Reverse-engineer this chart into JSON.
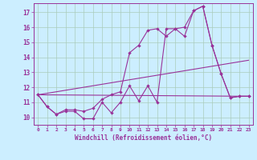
{
  "xlabel": "Windchill (Refroidissement éolien,°C)",
  "bg_color": "#cceeff",
  "grid_color": "#aaccbb",
  "line_color": "#993399",
  "xlim": [
    -0.5,
    23.5
  ],
  "ylim": [
    9.5,
    17.6
  ],
  "xticks": [
    0,
    1,
    2,
    3,
    4,
    5,
    6,
    7,
    8,
    9,
    10,
    11,
    12,
    13,
    14,
    15,
    16,
    17,
    18,
    19,
    20,
    21,
    22,
    23
  ],
  "yticks": [
    10,
    11,
    12,
    13,
    14,
    15,
    16,
    17
  ],
  "line1_x": [
    0,
    1,
    2,
    3,
    4,
    5,
    6,
    7,
    8,
    9,
    10,
    11,
    12,
    13,
    14,
    15,
    16,
    17,
    18,
    19,
    20,
    21,
    22,
    23
  ],
  "line1_y": [
    11.5,
    10.7,
    10.2,
    10.4,
    10.4,
    9.9,
    9.9,
    11.0,
    10.3,
    11.0,
    12.1,
    11.1,
    12.1,
    11.0,
    15.9,
    15.9,
    15.4,
    17.1,
    17.4,
    14.8,
    12.9,
    11.3,
    11.4,
    11.4
  ],
  "line2_x": [
    0,
    1,
    2,
    3,
    4,
    5,
    6,
    7,
    8,
    9,
    10,
    11,
    12,
    13,
    14,
    15,
    16,
    17,
    18,
    19,
    20,
    21,
    22,
    23
  ],
  "line2_y": [
    11.5,
    10.7,
    10.2,
    10.5,
    10.5,
    10.4,
    10.6,
    11.2,
    11.5,
    11.7,
    14.3,
    14.8,
    15.8,
    15.9,
    15.4,
    15.9,
    16.0,
    17.1,
    17.4,
    14.8,
    12.9,
    11.3,
    11.4,
    11.4
  ],
  "line3_x": [
    0,
    23
  ],
  "line3_y": [
    11.5,
    11.4
  ],
  "line4_x": [
    0,
    23
  ],
  "line4_y": [
    11.5,
    13.8
  ]
}
